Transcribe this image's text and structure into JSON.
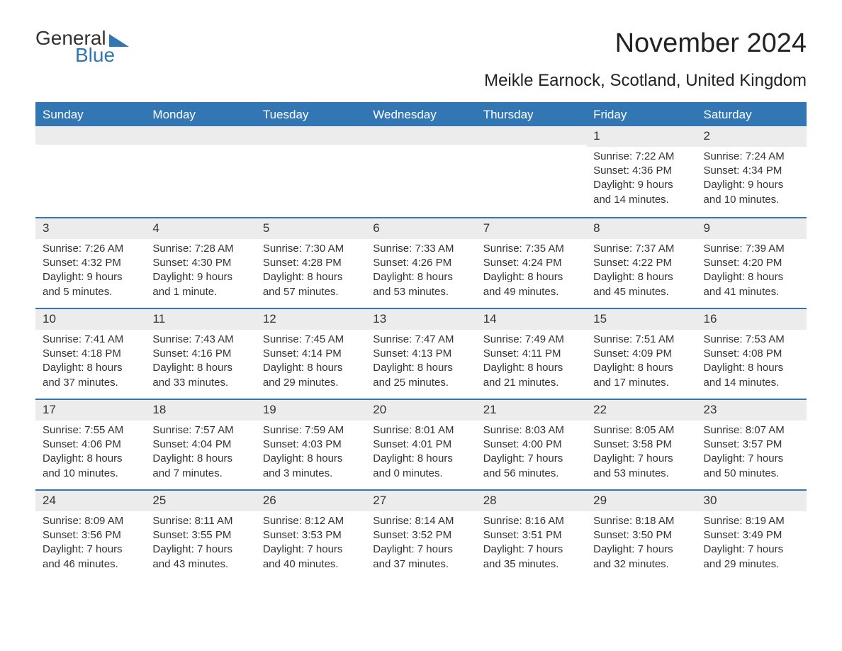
{
  "logo": {
    "word1": "General",
    "word2": "Blue"
  },
  "title": "November 2024",
  "subtitle": "Meikle Earnock, Scotland, United Kingdom",
  "day_headers": [
    "Sunday",
    "Monday",
    "Tuesday",
    "Wednesday",
    "Thursday",
    "Friday",
    "Saturday"
  ],
  "colors": {
    "accent": "#3277b3",
    "band": "#ececec",
    "text": "#333333",
    "bg": "#ffffff"
  },
  "weeks": [
    [
      null,
      null,
      null,
      null,
      null,
      {
        "day": "1",
        "sunrise": "Sunrise: 7:22 AM",
        "sunset": "Sunset: 4:36 PM",
        "daylight": "Daylight: 9 hours and 14 minutes."
      },
      {
        "day": "2",
        "sunrise": "Sunrise: 7:24 AM",
        "sunset": "Sunset: 4:34 PM",
        "daylight": "Daylight: 9 hours and 10 minutes."
      }
    ],
    [
      {
        "day": "3",
        "sunrise": "Sunrise: 7:26 AM",
        "sunset": "Sunset: 4:32 PM",
        "daylight": "Daylight: 9 hours and 5 minutes."
      },
      {
        "day": "4",
        "sunrise": "Sunrise: 7:28 AM",
        "sunset": "Sunset: 4:30 PM",
        "daylight": "Daylight: 9 hours and 1 minute."
      },
      {
        "day": "5",
        "sunrise": "Sunrise: 7:30 AM",
        "sunset": "Sunset: 4:28 PM",
        "daylight": "Daylight: 8 hours and 57 minutes."
      },
      {
        "day": "6",
        "sunrise": "Sunrise: 7:33 AM",
        "sunset": "Sunset: 4:26 PM",
        "daylight": "Daylight: 8 hours and 53 minutes."
      },
      {
        "day": "7",
        "sunrise": "Sunrise: 7:35 AM",
        "sunset": "Sunset: 4:24 PM",
        "daylight": "Daylight: 8 hours and 49 minutes."
      },
      {
        "day": "8",
        "sunrise": "Sunrise: 7:37 AM",
        "sunset": "Sunset: 4:22 PM",
        "daylight": "Daylight: 8 hours and 45 minutes."
      },
      {
        "day": "9",
        "sunrise": "Sunrise: 7:39 AM",
        "sunset": "Sunset: 4:20 PM",
        "daylight": "Daylight: 8 hours and 41 minutes."
      }
    ],
    [
      {
        "day": "10",
        "sunrise": "Sunrise: 7:41 AM",
        "sunset": "Sunset: 4:18 PM",
        "daylight": "Daylight: 8 hours and 37 minutes."
      },
      {
        "day": "11",
        "sunrise": "Sunrise: 7:43 AM",
        "sunset": "Sunset: 4:16 PM",
        "daylight": "Daylight: 8 hours and 33 minutes."
      },
      {
        "day": "12",
        "sunrise": "Sunrise: 7:45 AM",
        "sunset": "Sunset: 4:14 PM",
        "daylight": "Daylight: 8 hours and 29 minutes."
      },
      {
        "day": "13",
        "sunrise": "Sunrise: 7:47 AM",
        "sunset": "Sunset: 4:13 PM",
        "daylight": "Daylight: 8 hours and 25 minutes."
      },
      {
        "day": "14",
        "sunrise": "Sunrise: 7:49 AM",
        "sunset": "Sunset: 4:11 PM",
        "daylight": "Daylight: 8 hours and 21 minutes."
      },
      {
        "day": "15",
        "sunrise": "Sunrise: 7:51 AM",
        "sunset": "Sunset: 4:09 PM",
        "daylight": "Daylight: 8 hours and 17 minutes."
      },
      {
        "day": "16",
        "sunrise": "Sunrise: 7:53 AM",
        "sunset": "Sunset: 4:08 PM",
        "daylight": "Daylight: 8 hours and 14 minutes."
      }
    ],
    [
      {
        "day": "17",
        "sunrise": "Sunrise: 7:55 AM",
        "sunset": "Sunset: 4:06 PM",
        "daylight": "Daylight: 8 hours and 10 minutes."
      },
      {
        "day": "18",
        "sunrise": "Sunrise: 7:57 AM",
        "sunset": "Sunset: 4:04 PM",
        "daylight": "Daylight: 8 hours and 7 minutes."
      },
      {
        "day": "19",
        "sunrise": "Sunrise: 7:59 AM",
        "sunset": "Sunset: 4:03 PM",
        "daylight": "Daylight: 8 hours and 3 minutes."
      },
      {
        "day": "20",
        "sunrise": "Sunrise: 8:01 AM",
        "sunset": "Sunset: 4:01 PM",
        "daylight": "Daylight: 8 hours and 0 minutes."
      },
      {
        "day": "21",
        "sunrise": "Sunrise: 8:03 AM",
        "sunset": "Sunset: 4:00 PM",
        "daylight": "Daylight: 7 hours and 56 minutes."
      },
      {
        "day": "22",
        "sunrise": "Sunrise: 8:05 AM",
        "sunset": "Sunset: 3:58 PM",
        "daylight": "Daylight: 7 hours and 53 minutes."
      },
      {
        "day": "23",
        "sunrise": "Sunrise: 8:07 AM",
        "sunset": "Sunset: 3:57 PM",
        "daylight": "Daylight: 7 hours and 50 minutes."
      }
    ],
    [
      {
        "day": "24",
        "sunrise": "Sunrise: 8:09 AM",
        "sunset": "Sunset: 3:56 PM",
        "daylight": "Daylight: 7 hours and 46 minutes."
      },
      {
        "day": "25",
        "sunrise": "Sunrise: 8:11 AM",
        "sunset": "Sunset: 3:55 PM",
        "daylight": "Daylight: 7 hours and 43 minutes."
      },
      {
        "day": "26",
        "sunrise": "Sunrise: 8:12 AM",
        "sunset": "Sunset: 3:53 PM",
        "daylight": "Daylight: 7 hours and 40 minutes."
      },
      {
        "day": "27",
        "sunrise": "Sunrise: 8:14 AM",
        "sunset": "Sunset: 3:52 PM",
        "daylight": "Daylight: 7 hours and 37 minutes."
      },
      {
        "day": "28",
        "sunrise": "Sunrise: 8:16 AM",
        "sunset": "Sunset: 3:51 PM",
        "daylight": "Daylight: 7 hours and 35 minutes."
      },
      {
        "day": "29",
        "sunrise": "Sunrise: 8:18 AM",
        "sunset": "Sunset: 3:50 PM",
        "daylight": "Daylight: 7 hours and 32 minutes."
      },
      {
        "day": "30",
        "sunrise": "Sunrise: 8:19 AM",
        "sunset": "Sunset: 3:49 PM",
        "daylight": "Daylight: 7 hours and 29 minutes."
      }
    ]
  ]
}
